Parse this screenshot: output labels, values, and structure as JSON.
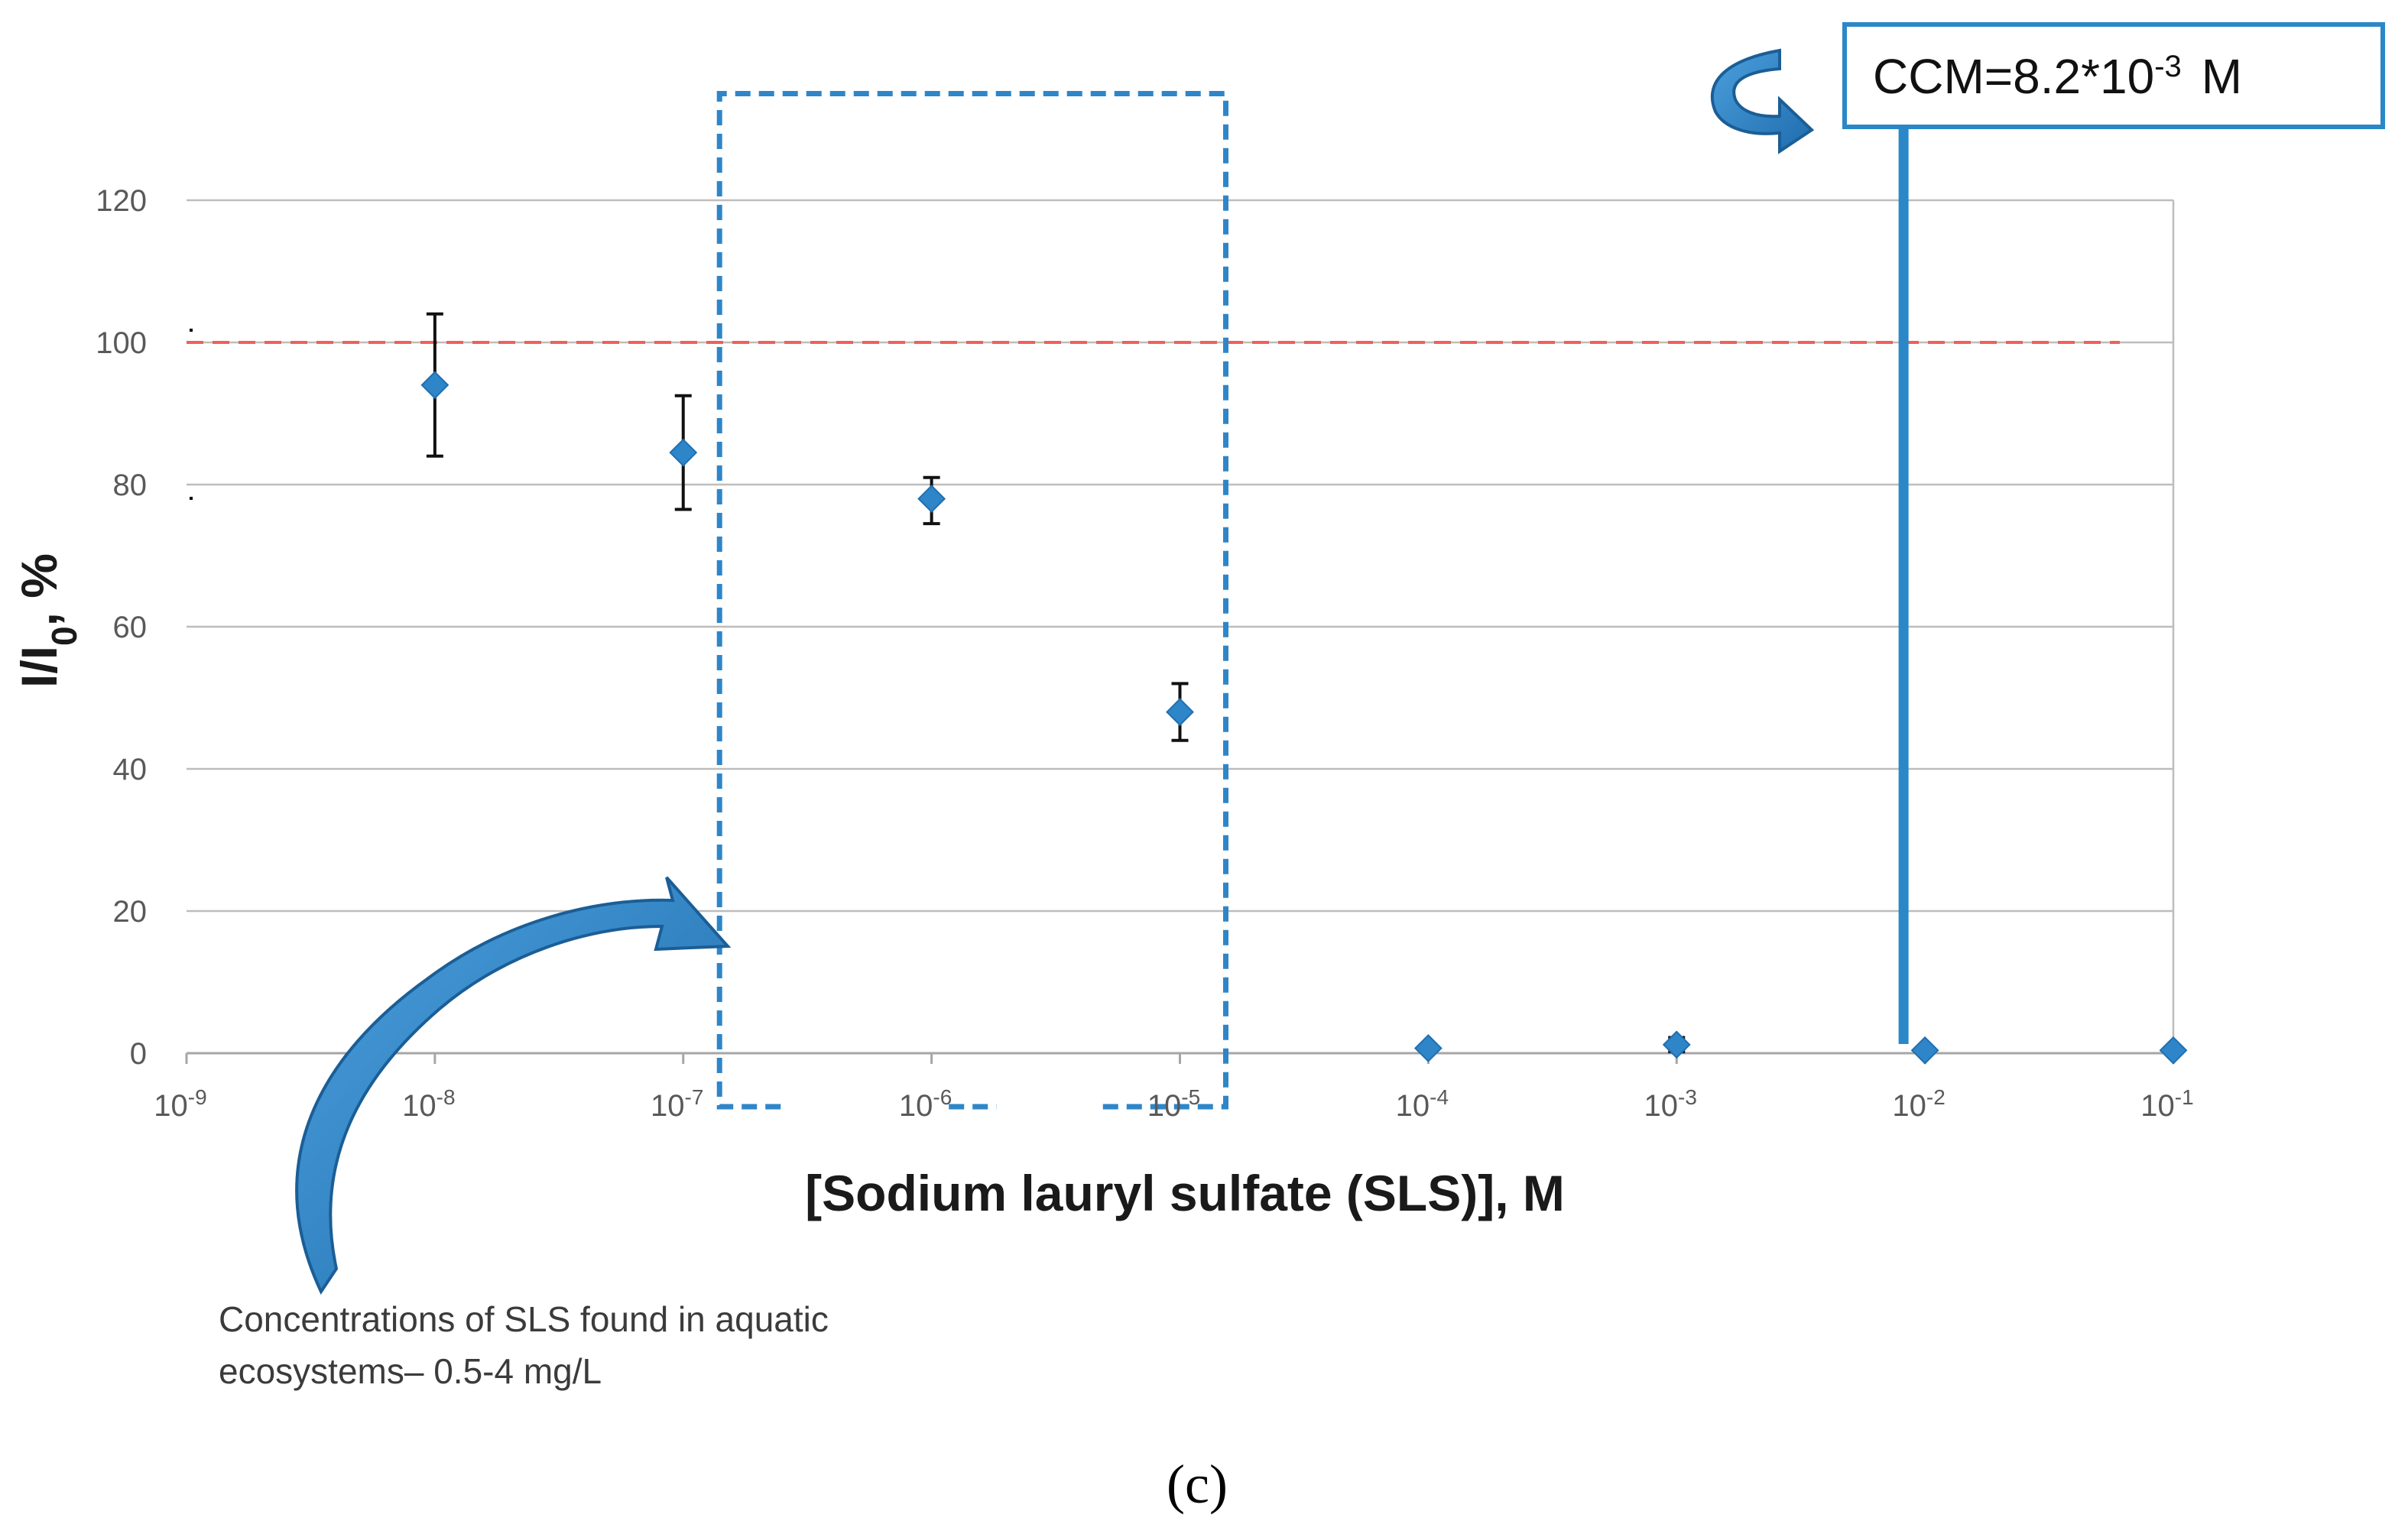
{
  "chart_data": {
    "type": "scatter",
    "x_scale": "log",
    "x_ticks": [
      {
        "base": "10",
        "exp": "-9",
        "value": 1e-09
      },
      {
        "base": "10",
        "exp": "-8",
        "value": 1e-08
      },
      {
        "base": "10",
        "exp": "-7",
        "value": 1e-07
      },
      {
        "base": "10",
        "exp": "-6",
        "value": 1e-06
      },
      {
        "base": "10",
        "exp": "-5",
        "value": 1e-05
      },
      {
        "base": "10",
        "exp": "-4",
        "value": 0.0001
      },
      {
        "base": "10",
        "exp": "-3",
        "value": 0.001
      },
      {
        "base": "10",
        "exp": "-2",
        "value": 0.01
      },
      {
        "base": "10",
        "exp": "-1",
        "value": 0.1
      }
    ],
    "xlim": [
      1e-09,
      0.1
    ],
    "ylim": [
      0,
      120
    ],
    "y_ticks": [
      "0",
      "20",
      "40",
      "60",
      "80",
      "100",
      "120"
    ],
    "xlabel": "[Sodium lauryl sulfate (SLS)], M",
    "ylabel": {
      "main": "I/I",
      "sub": "0",
      "suffix": ", %"
    },
    "grid": true,
    "series": [
      {
        "name": "I/I0",
        "color": "#2E86C9",
        "points": [
          {
            "x": 1e-08,
            "y": 94,
            "err_low": 84,
            "err_high": 104
          },
          {
            "x": 1e-07,
            "y": 84.5,
            "err_low": 76.5,
            "err_high": 92.5
          },
          {
            "x": 1e-06,
            "y": 78,
            "err_low": 74.5,
            "err_high": 81
          },
          {
            "x": 1e-05,
            "y": 48,
            "err_low": 44,
            "err_high": 52
          },
          {
            "x": 0.0001,
            "y": 0.7
          },
          {
            "x": 0.001,
            "y": 1.2,
            "err_low": 0.2,
            "err_high": 2.2
          },
          {
            "x": 0.01,
            "y": 0.4
          },
          {
            "x": 0.1,
            "y": 0.4
          }
        ]
      }
    ],
    "reference_line": {
      "y": 100,
      "color": "#F0605A",
      "style": "dashed"
    },
    "ccm": {
      "x": 0.0082,
      "color": "#2A88C8",
      "label_prefix": "CCM=8.2*10",
      "label_exp": "-3",
      "label_suffix": "M"
    },
    "aquatic_range": {
      "x_from": 1.4e-07,
      "x_to": 1e-05,
      "y_top": 135,
      "color": "#2E86C9",
      "label_line1": "Concentrations of SLS found in aquatic",
      "label_line2": "ecosystems– 0.5-4 mg/L"
    },
    "caption": "(c)"
  },
  "colors": {
    "marker": "#2E86C9",
    "arrow": "#2A6FAE",
    "grid": "#BDBDBD",
    "reference": "#F0605A"
  }
}
